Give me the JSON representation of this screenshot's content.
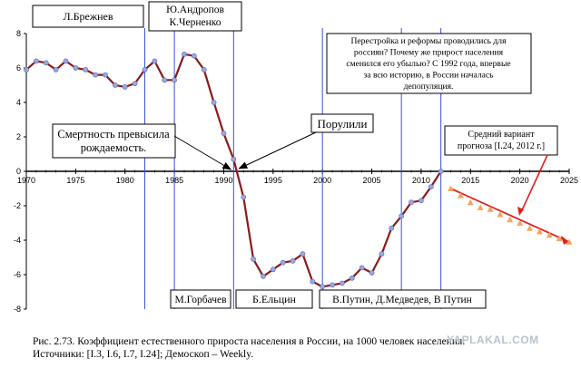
{
  "chart_data": {
    "type": "line",
    "title": "",
    "xlabel": "",
    "ylabel": "",
    "xlim": [
      1970,
      2025
    ],
    "ylim": [
      -8,
      8
    ],
    "x_ticks": [
      1970,
      1975,
      1980,
      1985,
      1990,
      1995,
      2000,
      2005,
      2010,
      2015,
      2020,
      2025
    ],
    "y_ticks": [
      8,
      6,
      4,
      2,
      0,
      -2,
      -4,
      -6,
      -8
    ],
    "grid": false,
    "series": [
      {
        "name": "",
        "color": "#8b1a1a",
        "x": [
          1970,
          1971,
          1972,
          1973,
          1974,
          1975,
          1976,
          1977,
          1978,
          1979,
          1980,
          1981,
          1982,
          1983,
          1984,
          1985,
          1986,
          1987,
          1988,
          1989,
          1990,
          1991,
          1992,
          1993,
          1994,
          1995,
          1996,
          1997,
          1998,
          1999,
          2000,
          2001,
          2002,
          2003,
          2004,
          2005,
          2006,
          2007,
          2008,
          2009,
          2010,
          2011,
          2012
        ],
        "values": [
          5.9,
          6.4,
          6.3,
          5.9,
          6.4,
          6.0,
          5.9,
          5.6,
          5.6,
          5.0,
          4.9,
          5.1,
          5.9,
          6.4,
          5.3,
          5.3,
          6.8,
          6.7,
          5.9,
          4.0,
          2.2,
          0.7,
          -1.5,
          -5.1,
          -6.1,
          -5.7,
          -5.3,
          -5.2,
          -4.8,
          -6.4,
          -6.7,
          -6.6,
          -6.5,
          -6.2,
          -5.6,
          -5.9,
          -4.8,
          -3.3,
          -2.6,
          -1.8,
          -1.7,
          -0.9,
          0.0
        ]
      },
      {
        "name": "",
        "color": "#f4a460",
        "line_color": "#e02020",
        "x": [
          2013,
          2014,
          2015,
          2016,
          2017,
          2018,
          2019,
          2020,
          2021,
          2022,
          2023,
          2024,
          2025
        ],
        "values": [
          -1.0,
          -1.4,
          -1.8,
          -2.1,
          -2.2,
          -2.5,
          -2.8,
          -3.0,
          -3.3,
          -3.5,
          -3.7,
          -3.9,
          -4.1
        ]
      }
    ],
    "vlines": [
      1982,
      1985,
      1991,
      2000,
      2008,
      2012
    ],
    "annotations": {
      "brezhnev": "Л.Брежнев",
      "andropov": "Ю.Андропов",
      "chernenko": "К.Черненко",
      "perestroika": [
        "Перестройка и реформы проводились для",
        "россиян? Почему же прирост населения",
        "сменился его убылью? С 1992 года, впервые",
        "за всю историю, в России началась",
        "депопуляция."
      ],
      "mortality": [
        "Смертность превысила",
        "рождаемость."
      ],
      "porulili": "Порулили",
      "forecast": [
        "Средний вариант",
        "прогноза [I.24, 2012 г.]"
      ],
      "gorbachev": "М.Горбачев",
      "yeltsin": "Б.Ельцин",
      "putin": "В.Путин, Д.Медведев, В Путин"
    }
  },
  "caption": {
    "line1": "Рис. 2.73. Коэффициент естественного прироста населения в России, на 1000 человек населения.",
    "line2": "Источники: [I.3, I.6, I.7, I.24]; Демоскоп – Weekly."
  },
  "watermark": "YAPLAKAL.COM"
}
